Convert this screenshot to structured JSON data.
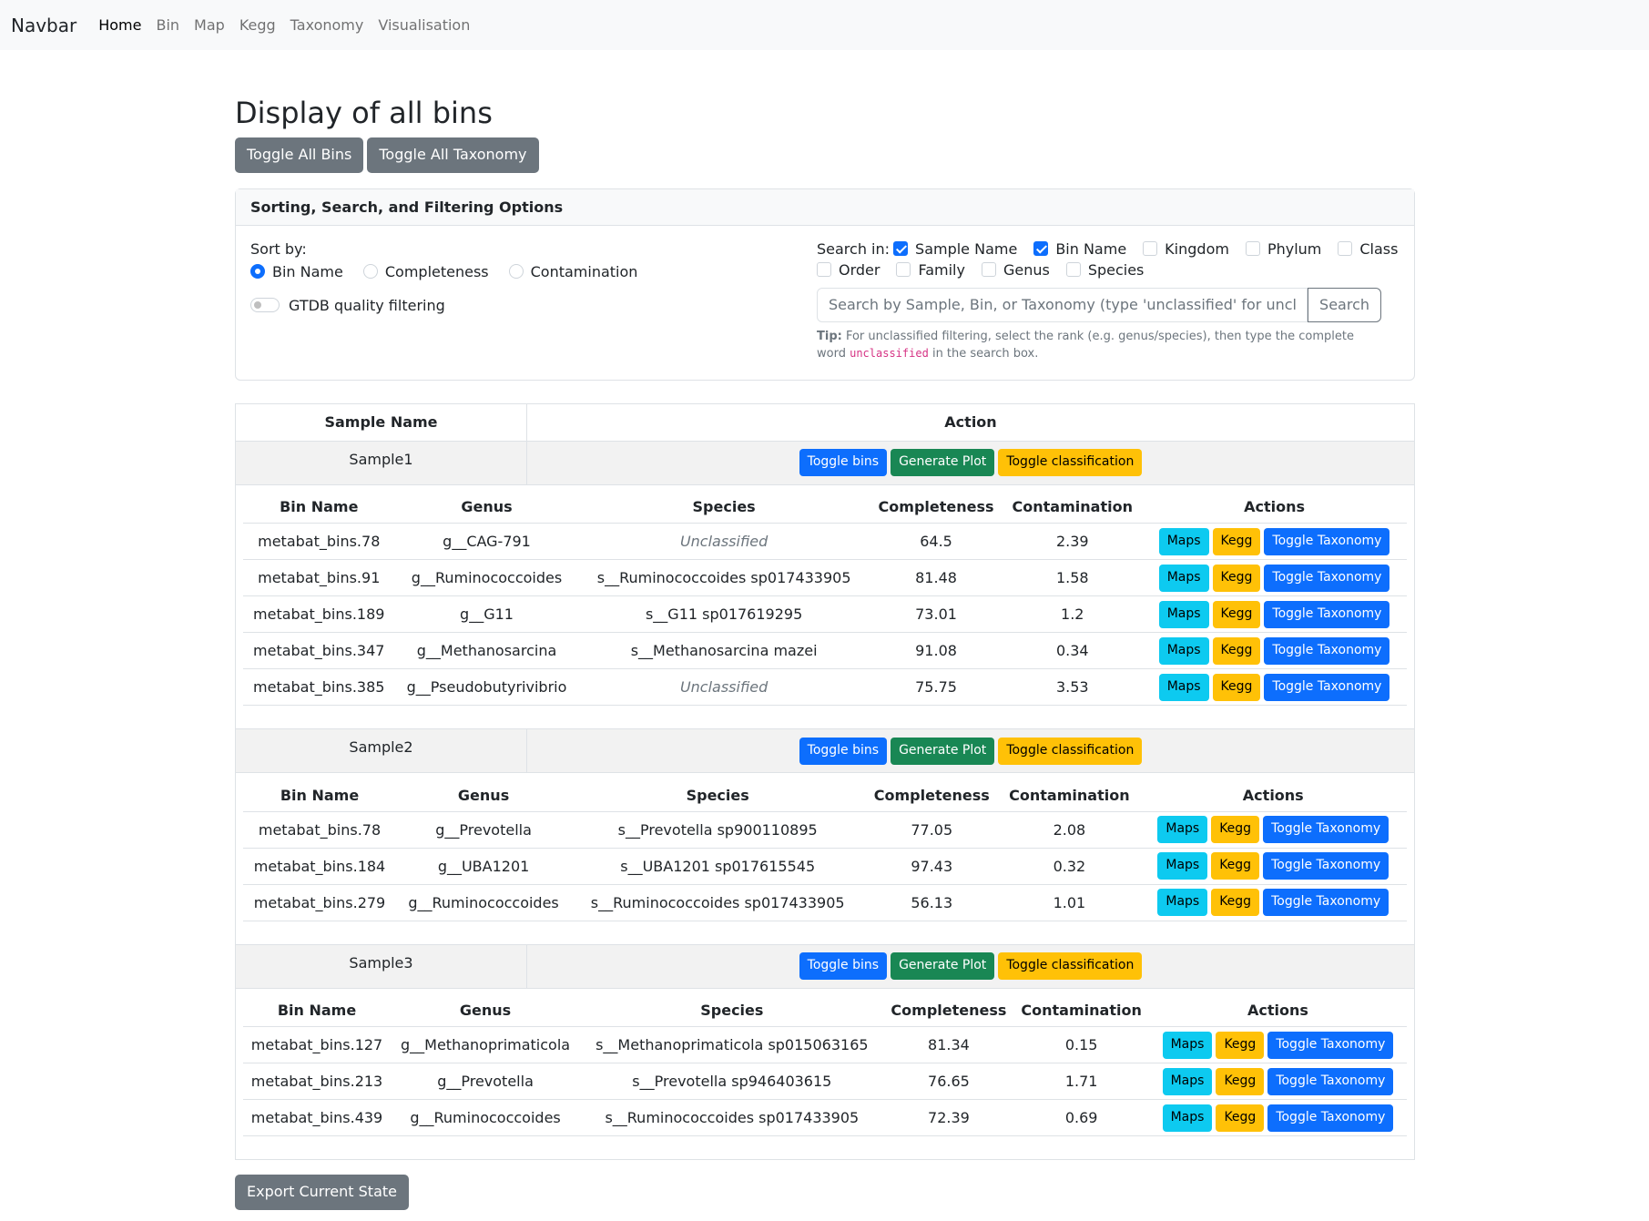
{
  "navbar": {
    "brand": "Navbar",
    "links": [
      "Home",
      "Bin",
      "Map",
      "Kegg",
      "Taxonomy",
      "Visualisation"
    ]
  },
  "page": {
    "title": "Display of all bins",
    "toggle_all_bins": "Toggle All Bins",
    "toggle_all_taxonomy": "Toggle All Taxonomy",
    "export_button": "Export Current State"
  },
  "options": {
    "header": "Sorting, Search, and Filtering Options",
    "sort_label": "Sort by:",
    "sort_options": [
      "Bin Name",
      "Completeness",
      "Contamination"
    ],
    "sort_selected": "Bin Name",
    "gtdb_label": "GTDB quality filtering",
    "search_in_label": "Search in:",
    "search_fields": [
      {
        "label": "Sample Name",
        "checked": true
      },
      {
        "label": "Bin Name",
        "checked": true
      },
      {
        "label": "Kingdom",
        "checked": false
      },
      {
        "label": "Phylum",
        "checked": false
      },
      {
        "label": "Class",
        "checked": false
      },
      {
        "label": "Order",
        "checked": false
      },
      {
        "label": "Family",
        "checked": false
      },
      {
        "label": "Genus",
        "checked": false
      },
      {
        "label": "Species",
        "checked": false
      }
    ],
    "search_placeholder": "Search by Sample, Bin, or Taxonomy (type 'unclassified' for unclassified bins)",
    "search_button": "Search",
    "tip_bold": "Tip:",
    "tip_text": "For unclassified filtering, select the rank (e.g. genus/species), then type the complete word",
    "tip_code": "unclassified",
    "tip_end": "in the search box."
  },
  "table": {
    "col_sample": "Sample Name",
    "col_action": "Action",
    "sample_buttons": {
      "toggle_bins": "Toggle bins",
      "generate_plot": "Generate Plot",
      "toggle_classification": "Toggle classification"
    },
    "bin_headers": [
      "Bin Name",
      "Genus",
      "Species",
      "Completeness",
      "Contamination",
      "Actions"
    ],
    "bin_buttons": {
      "maps": "Maps",
      "kegg": "Kegg",
      "toggle_taxonomy": "Toggle Taxonomy"
    },
    "samples": [
      {
        "name": "Sample1",
        "bins": [
          {
            "bin": "metabat_bins.78",
            "genus": "g__CAG-791",
            "species": "Unclassified",
            "completeness": "64.5",
            "contamination": "2.39"
          },
          {
            "bin": "metabat_bins.91",
            "genus": "g__Ruminococcoides",
            "species": "s__Ruminococcoides sp017433905",
            "completeness": "81.48",
            "contamination": "1.58"
          },
          {
            "bin": "metabat_bins.189",
            "genus": "g__G11",
            "species": "s__G11 sp017619295",
            "completeness": "73.01",
            "contamination": "1.2"
          },
          {
            "bin": "metabat_bins.347",
            "genus": "g__Methanosarcina",
            "species": "s__Methanosarcina mazei",
            "completeness": "91.08",
            "contamination": "0.34"
          },
          {
            "bin": "metabat_bins.385",
            "genus": "g__Pseudobutyrivibrio",
            "species": "Unclassified",
            "completeness": "75.75",
            "contamination": "3.53"
          }
        ]
      },
      {
        "name": "Sample2",
        "bins": [
          {
            "bin": "metabat_bins.78",
            "genus": "g__Prevotella",
            "species": "s__Prevotella sp900110895",
            "completeness": "77.05",
            "contamination": "2.08"
          },
          {
            "bin": "metabat_bins.184",
            "genus": "g__UBA1201",
            "species": "s__UBA1201 sp017615545",
            "completeness": "97.43",
            "contamination": "0.32"
          },
          {
            "bin": "metabat_bins.279",
            "genus": "g__Ruminococcoides",
            "species": "s__Ruminococcoides sp017433905",
            "completeness": "56.13",
            "contamination": "1.01"
          }
        ]
      },
      {
        "name": "Sample3",
        "bins": [
          {
            "bin": "metabat_bins.127",
            "genus": "g__Methanoprimaticola",
            "species": "s__Methanoprimaticola sp015063165",
            "completeness": "81.34",
            "contamination": "0.15"
          },
          {
            "bin": "metabat_bins.213",
            "genus": "g__Prevotella",
            "species": "s__Prevotella sp946403615",
            "completeness": "76.65",
            "contamination": "1.71"
          },
          {
            "bin": "metabat_bins.439",
            "genus": "g__Ruminococcoides",
            "species": "s__Ruminococcoides sp017433905",
            "completeness": "72.39",
            "contamination": "0.69"
          }
        ]
      }
    ]
  }
}
